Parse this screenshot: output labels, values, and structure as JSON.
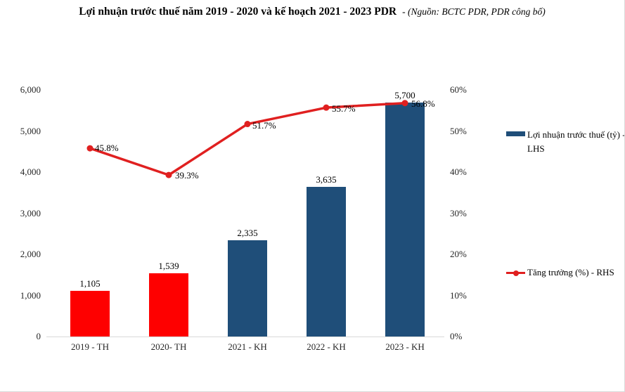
{
  "title": {
    "main": "Lợi nhuận trước thuế năm 2019 - 2020 và kế hoạch 2021 - 2023 PDR",
    "source": "- (Nguồn: BCTC PDR, PDR công bố)"
  },
  "chart_data": {
    "type": "combo-bar-line",
    "categories": [
      "2019 - TH",
      "2020- TH",
      "2021 - KH",
      "2022 - KH",
      "2023 - KH"
    ],
    "series": [
      {
        "name": "Lợi nhuận trước thuế (tỷ) - LHS",
        "type": "bar",
        "axis": "left",
        "values": [
          1105,
          1539,
          2335,
          3635,
          5700
        ],
        "value_labels": [
          "1,105",
          "1,539",
          "2,335",
          "3,635",
          "5,700"
        ],
        "bar_colors": [
          "#fe0000",
          "#fe0000",
          "#1f4e79",
          "#1f4e79",
          "#1f4e79"
        ]
      },
      {
        "name": "Tăng trưởng (%) - RHS",
        "type": "line",
        "axis": "right",
        "values": [
          45.8,
          39.3,
          51.7,
          55.7,
          56.8
        ],
        "value_labels": [
          "45.8%",
          "39.3%",
          "51.7%",
          "55.7%",
          "56.8%"
        ],
        "color": "#e02020"
      }
    ],
    "left_axis": {
      "min": 0,
      "max": 6000,
      "step": 1000,
      "tick_labels": [
        "0",
        "1,000",
        "2,000",
        "3,000",
        "4,000",
        "5,000",
        "6,000"
      ]
    },
    "right_axis": {
      "min": 0,
      "max": 60,
      "step": 10,
      "tick_labels": [
        "0%",
        "10%",
        "20%",
        "30%",
        "40%",
        "50%",
        "60%"
      ]
    },
    "grid": false,
    "legend_position": "right"
  },
  "legend": {
    "bar_item_lines": {
      "line1": "Lợi nhuận trước thuế (tỷ) -",
      "line2": "LHS"
    },
    "line_item_label": "Tăng trưởng (%) - RHS"
  },
  "colors": {
    "bar_actual": "#fe0000",
    "bar_plan": "#1f4e79",
    "growth_line": "#e02020",
    "axis_line": "#d9d9d9"
  }
}
